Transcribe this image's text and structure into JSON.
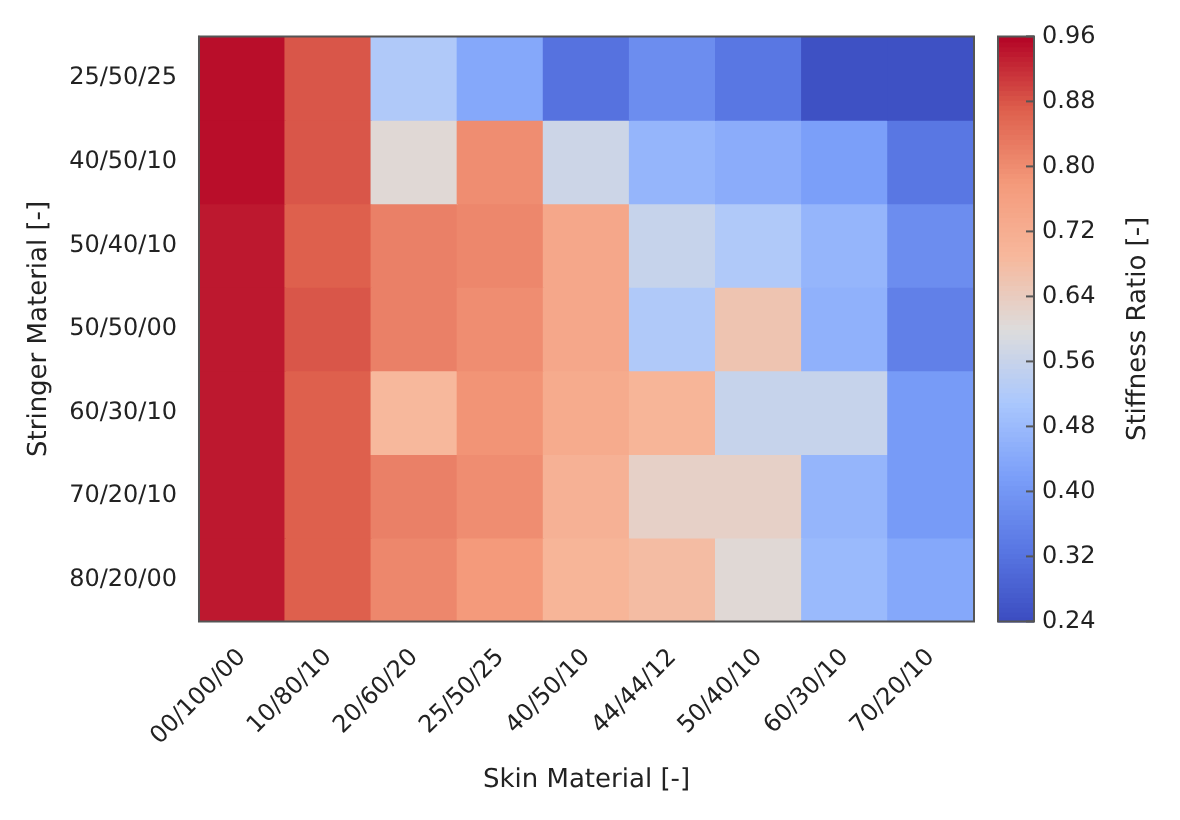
{
  "chart_data": {
    "type": "heatmap",
    "xlabel": "Skin Material [-]",
    "ylabel": "Stringer Material [-]",
    "clabel": "Stiffness Ratio [-]",
    "categories": [
      "00/100/00",
      "10/80/10",
      "20/60/20",
      "25/50/25",
      "40/50/10",
      "44/44/12",
      "50/40/10",
      "60/30/10",
      "70/20/10"
    ],
    "y_categories": [
      "25/50/25",
      "40/50/10",
      "50/40/10",
      "50/50/00",
      "60/30/10",
      "70/20/10",
      "80/20/00"
    ],
    "cells": [
      [
        0.95,
        0.88,
        0.52,
        0.44,
        0.32,
        0.38,
        0.33,
        0.25,
        0.25
      ],
      [
        0.95,
        0.88,
        0.61,
        0.8,
        0.57,
        0.47,
        0.45,
        0.42,
        0.33
      ],
      [
        0.94,
        0.87,
        0.82,
        0.81,
        0.74,
        0.56,
        0.52,
        0.47,
        0.38
      ],
      [
        0.94,
        0.88,
        0.82,
        0.8,
        0.74,
        0.52,
        0.66,
        0.46,
        0.35
      ],
      [
        0.94,
        0.87,
        0.69,
        0.79,
        0.73,
        0.7,
        0.56,
        0.56,
        0.41
      ],
      [
        0.94,
        0.87,
        0.82,
        0.8,
        0.71,
        0.63,
        0.63,
        0.47,
        0.41
      ],
      [
        0.94,
        0.87,
        0.81,
        0.78,
        0.7,
        0.68,
        0.61,
        0.48,
        0.44
      ]
    ],
    "clim": [
      0.24,
      0.96
    ],
    "cticks": [
      0.24,
      0.32,
      {
        "value": 0.4,
        "label": "0.40"
      },
      0.48,
      0.56,
      0.64,
      0.72,
      {
        "value": 0.8,
        "label": "0.80"
      },
      0.88,
      0.96
    ]
  }
}
